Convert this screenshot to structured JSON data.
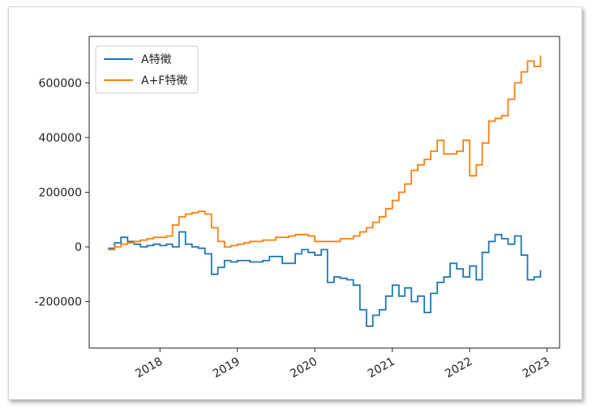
{
  "chart_data": {
    "type": "line",
    "title": "",
    "xlabel": "",
    "ylabel": "",
    "xlim": [
      "2017-02-01",
      "2023-03-01"
    ],
    "ylim": [
      -370000,
      770000
    ],
    "x_ticks": [
      "2018",
      "2019",
      "2020",
      "2021",
      "2022",
      "2023"
    ],
    "y_ticks": [
      -200000,
      0,
      200000,
      400000,
      600000
    ],
    "y_tick_labels": [
      "-200000",
      "0",
      "200000",
      "400000",
      "600000"
    ],
    "legend": {
      "placement": "top-left"
    },
    "grid": false,
    "series": [
      {
        "name": "A特徵",
        "color": "#1f77b4",
        "points": [
          [
            "2017-05-01",
            -5000
          ],
          [
            "2017-06-01",
            15000
          ],
          [
            "2017-07-01",
            35000
          ],
          [
            "2017-08-01",
            20000
          ],
          [
            "2017-09-01",
            10000
          ],
          [
            "2017-10-01",
            0
          ],
          [
            "2017-11-01",
            5000
          ],
          [
            "2017-12-01",
            10000
          ],
          [
            "2018-01-01",
            5000
          ],
          [
            "2018-02-01",
            10000
          ],
          [
            "2018-03-01",
            0
          ],
          [
            "2018-04-01",
            55000
          ],
          [
            "2018-05-01",
            10000
          ],
          [
            "2018-06-01",
            0
          ],
          [
            "2018-07-01",
            -5000
          ],
          [
            "2018-08-01",
            -25000
          ],
          [
            "2018-09-01",
            -100000
          ],
          [
            "2018-10-01",
            -75000
          ],
          [
            "2018-11-01",
            -50000
          ],
          [
            "2018-12-01",
            -55000
          ],
          [
            "2019-01-01",
            -50000
          ],
          [
            "2019-03-01",
            -55000
          ],
          [
            "2019-05-01",
            -50000
          ],
          [
            "2019-06-01",
            -35000
          ],
          [
            "2019-08-01",
            -60000
          ],
          [
            "2019-10-01",
            -25000
          ],
          [
            "2019-11-01",
            -10000
          ],
          [
            "2019-12-01",
            -20000
          ],
          [
            "2020-01-01",
            -30000
          ],
          [
            "2020-02-01",
            -10000
          ],
          [
            "2020-03-01",
            -130000
          ],
          [
            "2020-04-01",
            -110000
          ],
          [
            "2020-05-01",
            -115000
          ],
          [
            "2020-06-01",
            -120000
          ],
          [
            "2020-07-01",
            -140000
          ],
          [
            "2020-08-01",
            -230000
          ],
          [
            "2020-09-01",
            -290000
          ],
          [
            "2020-10-01",
            -250000
          ],
          [
            "2020-11-01",
            -230000
          ],
          [
            "2020-12-01",
            -180000
          ],
          [
            "2021-01-01",
            -140000
          ],
          [
            "2021-02-01",
            -180000
          ],
          [
            "2021-03-01",
            -150000
          ],
          [
            "2021-04-01",
            -200000
          ],
          [
            "2021-05-01",
            -180000
          ],
          [
            "2021-06-01",
            -240000
          ],
          [
            "2021-07-01",
            -170000
          ],
          [
            "2021-08-01",
            -130000
          ],
          [
            "2021-09-01",
            -110000
          ],
          [
            "2021-10-01",
            -60000
          ],
          [
            "2021-11-01",
            -80000
          ],
          [
            "2021-12-01",
            -110000
          ],
          [
            "2022-01-01",
            -70000
          ],
          [
            "2022-02-01",
            -120000
          ],
          [
            "2022-03-01",
            -20000
          ],
          [
            "2022-04-01",
            20000
          ],
          [
            "2022-05-01",
            45000
          ],
          [
            "2022-06-01",
            30000
          ],
          [
            "2022-07-01",
            10000
          ],
          [
            "2022-08-01",
            40000
          ],
          [
            "2022-09-01",
            -30000
          ],
          [
            "2022-10-01",
            -120000
          ],
          [
            "2022-11-01",
            -110000
          ],
          [
            "2022-12-01",
            -85000
          ]
        ]
      },
      {
        "name": "A+F特徵",
        "color": "#ff7f0e",
        "points": [
          [
            "2017-05-01",
            -10000
          ],
          [
            "2017-06-01",
            0
          ],
          [
            "2017-07-01",
            10000
          ],
          [
            "2017-08-01",
            15000
          ],
          [
            "2017-09-01",
            20000
          ],
          [
            "2017-10-01",
            25000
          ],
          [
            "2017-11-01",
            30000
          ],
          [
            "2017-12-01",
            35000
          ],
          [
            "2018-01-01",
            35000
          ],
          [
            "2018-02-01",
            40000
          ],
          [
            "2018-03-01",
            80000
          ],
          [
            "2018-04-01",
            110000
          ],
          [
            "2018-05-01",
            120000
          ],
          [
            "2018-06-01",
            125000
          ],
          [
            "2018-07-01",
            130000
          ],
          [
            "2018-08-01",
            120000
          ],
          [
            "2018-09-01",
            70000
          ],
          [
            "2018-10-01",
            20000
          ],
          [
            "2018-11-01",
            0
          ],
          [
            "2018-12-01",
            5000
          ],
          [
            "2019-01-01",
            10000
          ],
          [
            "2019-02-01",
            15000
          ],
          [
            "2019-03-01",
            20000
          ],
          [
            "2019-05-01",
            25000
          ],
          [
            "2019-07-01",
            35000
          ],
          [
            "2019-09-01",
            40000
          ],
          [
            "2019-10-01",
            45000
          ],
          [
            "2019-12-01",
            40000
          ],
          [
            "2020-01-01",
            20000
          ],
          [
            "2020-03-01",
            20000
          ],
          [
            "2020-05-01",
            30000
          ],
          [
            "2020-07-01",
            40000
          ],
          [
            "2020-08-01",
            55000
          ],
          [
            "2020-09-01",
            70000
          ],
          [
            "2020-10-01",
            90000
          ],
          [
            "2020-11-01",
            110000
          ],
          [
            "2020-12-01",
            140000
          ],
          [
            "2021-01-01",
            170000
          ],
          [
            "2021-02-01",
            200000
          ],
          [
            "2021-03-01",
            230000
          ],
          [
            "2021-04-01",
            280000
          ],
          [
            "2021-05-01",
            300000
          ],
          [
            "2021-06-01",
            320000
          ],
          [
            "2021-07-01",
            350000
          ],
          [
            "2021-08-01",
            390000
          ],
          [
            "2021-09-01",
            340000
          ],
          [
            "2021-10-01",
            340000
          ],
          [
            "2021-11-01",
            350000
          ],
          [
            "2021-12-01",
            390000
          ],
          [
            "2022-01-01",
            260000
          ],
          [
            "2022-02-01",
            300000
          ],
          [
            "2022-03-01",
            380000
          ],
          [
            "2022-04-01",
            460000
          ],
          [
            "2022-05-01",
            470000
          ],
          [
            "2022-06-01",
            480000
          ],
          [
            "2022-07-01",
            540000
          ],
          [
            "2022-08-01",
            600000
          ],
          [
            "2022-09-01",
            640000
          ],
          [
            "2022-10-01",
            680000
          ],
          [
            "2022-11-01",
            660000
          ],
          [
            "2022-12-01",
            700000
          ]
        ]
      }
    ]
  }
}
